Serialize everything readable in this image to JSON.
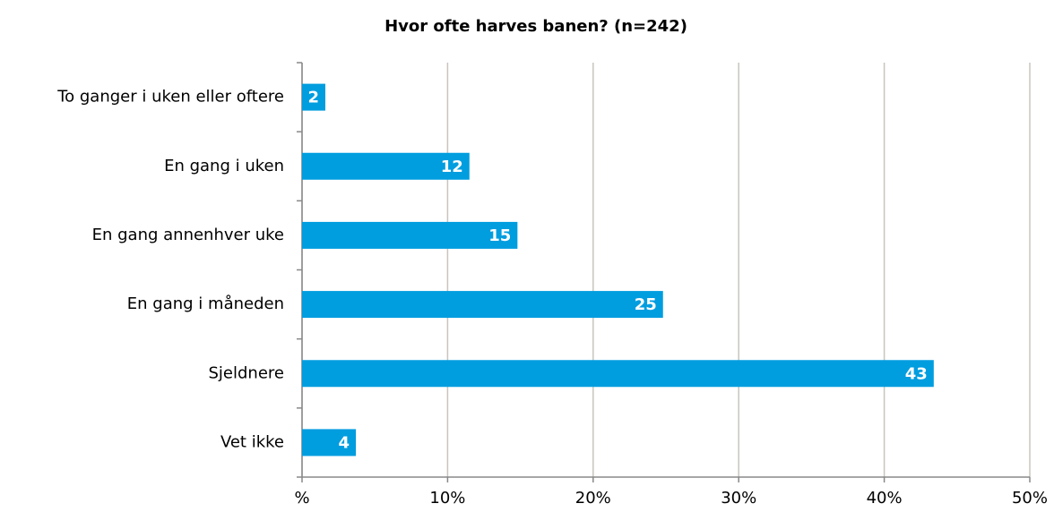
{
  "chart_data": {
    "type": "bar",
    "orientation": "horizontal",
    "title": "Hvor ofte harves banen? (n=242)",
    "categories": [
      "To ganger i uken eller oftere",
      "En gang i uken",
      "En gang annenhver uke",
      "En gang i måneden",
      "Sjeldnere",
      "Vet ikke"
    ],
    "values": [
      1.6,
      11.5,
      14.8,
      24.8,
      43.4,
      3.7
    ],
    "value_labels": [
      "2",
      "12",
      "15",
      "25",
      "43",
      "4"
    ],
    "color": "#009ddf",
    "xlim": [
      0,
      50
    ],
    "xticks": [
      {
        "value": 0,
        "label": "%"
      },
      {
        "value": 10,
        "label": "10%"
      },
      {
        "value": 20,
        "label": "20%"
      },
      {
        "value": 30,
        "label": "30%"
      },
      {
        "value": 40,
        "label": "40%"
      },
      {
        "value": 50,
        "label": "50%"
      }
    ],
    "grid": true
  }
}
